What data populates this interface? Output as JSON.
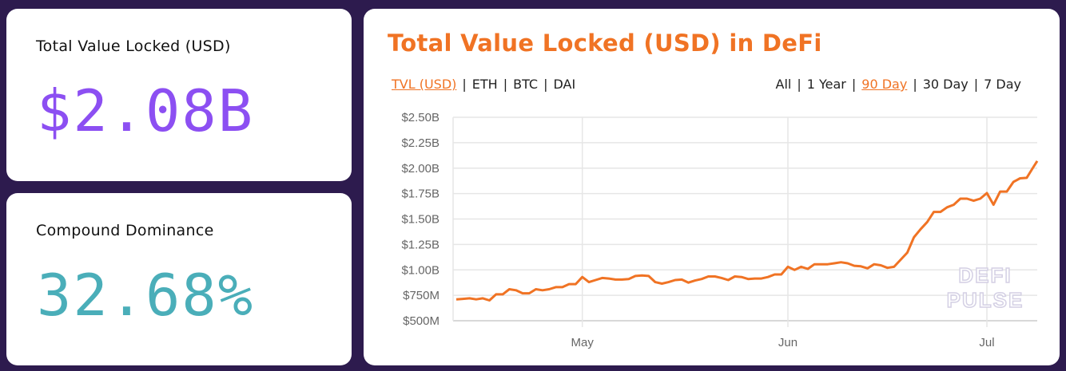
{
  "tvl_card": {
    "label": "Total Value Locked (USD)",
    "value": "$2.08B",
    "color": "#8c4ff2"
  },
  "dominance_card": {
    "label": "Compound Dominance",
    "value": "32.68%",
    "color": "#4aaeb9"
  },
  "chart_card": {
    "title": "Total Value Locked (USD) in DeFi",
    "metric_tabs": [
      {
        "label": "TVL (USD)",
        "active": true
      },
      {
        "label": "ETH",
        "active": false
      },
      {
        "label": "BTC",
        "active": false
      },
      {
        "label": "DAI",
        "active": false
      }
    ],
    "range_tabs": [
      {
        "label": "All",
        "active": false
      },
      {
        "label": "1 Year",
        "active": false
      },
      {
        "label": "90 Day",
        "active": true
      },
      {
        "label": "30 Day",
        "active": false
      },
      {
        "label": "7 Day",
        "active": false
      }
    ],
    "watermark": [
      "DEFI",
      "PULSE"
    ],
    "accent_color": "#f07324"
  },
  "chart_data": {
    "type": "line",
    "title": "",
    "xlabel": "",
    "ylabel": "",
    "ylim": [
      0.5,
      2.5
    ],
    "y_unit": "billion USD",
    "y_ticks": [
      0.5,
      0.75,
      1.0,
      1.25,
      1.5,
      1.75,
      2.0,
      2.25,
      2.5
    ],
    "y_tick_labels": [
      "$500M",
      "$750M",
      "$1.00B",
      "$1.25B",
      "$1.50B",
      "$1.75B",
      "$2.00B",
      "$2.25B",
      "$2.50B"
    ],
    "x_ticks": [
      "05-01",
      "06-01",
      "07-01"
    ],
    "x_tick_labels": [
      "May",
      "Jun",
      "Jul"
    ],
    "grid": true,
    "line_color": "#f07324",
    "x": [
      "04-12",
      "04-13",
      "04-14",
      "04-15",
      "04-16",
      "04-17",
      "04-18",
      "04-19",
      "04-20",
      "04-21",
      "04-22",
      "04-23",
      "04-24",
      "04-25",
      "04-26",
      "04-27",
      "04-28",
      "04-29",
      "04-30",
      "05-01",
      "05-02",
      "05-03",
      "05-04",
      "05-05",
      "05-06",
      "05-07",
      "05-08",
      "05-09",
      "05-10",
      "05-11",
      "05-12",
      "05-13",
      "05-14",
      "05-15",
      "05-16",
      "05-17",
      "05-18",
      "05-19",
      "05-20",
      "05-21",
      "05-22",
      "05-23",
      "05-24",
      "05-25",
      "05-26",
      "05-27",
      "05-28",
      "05-29",
      "05-30",
      "05-31",
      "06-01",
      "06-02",
      "06-03",
      "06-04",
      "06-05",
      "06-06",
      "06-07",
      "06-08",
      "06-09",
      "06-10",
      "06-11",
      "06-12",
      "06-13",
      "06-14",
      "06-15",
      "06-16",
      "06-17",
      "06-18",
      "06-19",
      "06-20",
      "06-21",
      "06-22",
      "06-23",
      "06-24",
      "06-25",
      "06-26",
      "06-27",
      "06-28",
      "06-29",
      "06-30",
      "07-01",
      "07-02",
      "07-03",
      "07-04",
      "07-05",
      "07-06",
      "07-07",
      "07-08",
      "07-09"
    ],
    "values": [
      0.71,
      0.715,
      0.72,
      0.71,
      0.72,
      0.7,
      0.76,
      0.76,
      0.81,
      0.8,
      0.77,
      0.77,
      0.81,
      0.8,
      0.81,
      0.83,
      0.83,
      0.86,
      0.86,
      0.93,
      0.88,
      0.9,
      0.92,
      0.915,
      0.905,
      0.905,
      0.91,
      0.94,
      0.945,
      0.94,
      0.88,
      0.865,
      0.88,
      0.9,
      0.905,
      0.875,
      0.895,
      0.91,
      0.935,
      0.935,
      0.92,
      0.9,
      0.935,
      0.93,
      0.91,
      0.915,
      0.915,
      0.93,
      0.955,
      0.955,
      1.03,
      1.0,
      1.03,
      1.01,
      1.055,
      1.055,
      1.055,
      1.065,
      1.075,
      1.065,
      1.04,
      1.035,
      1.015,
      1.055,
      1.045,
      1.02,
      1.03,
      1.1,
      1.17,
      1.32,
      1.4,
      1.47,
      1.57,
      1.57,
      1.615,
      1.64,
      1.7,
      1.7,
      1.68,
      1.7,
      1.755,
      1.64,
      1.77,
      1.77,
      1.865,
      1.9,
      1.905,
      2.01,
      2.07
    ]
  }
}
